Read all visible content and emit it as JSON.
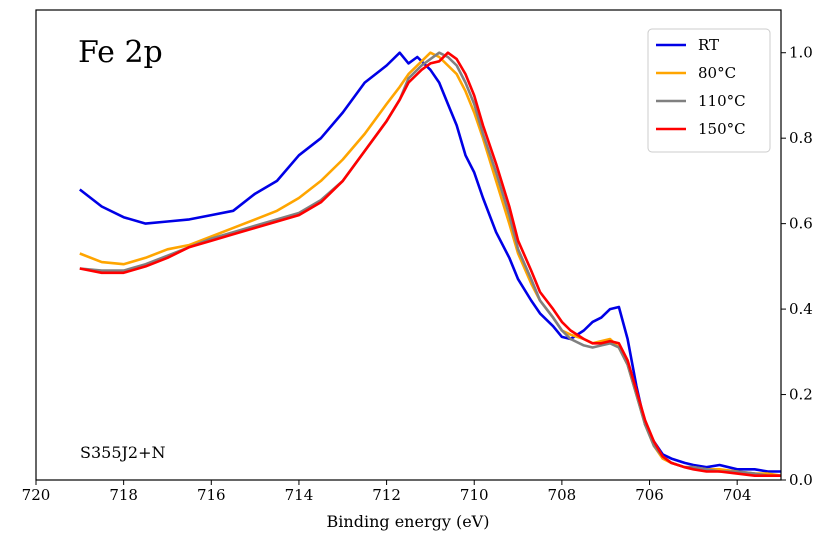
{
  "chart_data": {
    "type": "line",
    "annotation_title": "Fe 2p",
    "annotation_sample": "S355J2+N",
    "xlabel": "Binding energy (eV)",
    "ylabel": "",
    "xlim": [
      720,
      703
    ],
    "ylim": [
      0.0,
      1.1
    ],
    "x_reversed": true,
    "y_axis_side": "right",
    "xticks": [
      720,
      718,
      716,
      714,
      712,
      710,
      708,
      706,
      704
    ],
    "xtick_labels": [
      "720",
      "718",
      "716",
      "714",
      "712",
      "710",
      "708",
      "706",
      "704"
    ],
    "yticks": [
      0.0,
      0.2,
      0.4,
      0.6,
      0.8,
      1.0
    ],
    "ytick_labels": [
      "0.0",
      "0.2",
      "0.4",
      "0.6",
      "0.8",
      "1.0"
    ],
    "grid": false,
    "legend_position": "top-right",
    "series": [
      {
        "name": "RT",
        "color": "#0000e6",
        "x": [
          719.0,
          718.5,
          718.0,
          717.5,
          717.0,
          716.5,
          716.0,
          715.5,
          715.0,
          714.5,
          714.0,
          713.5,
          713.0,
          712.5,
          712.0,
          711.7,
          711.5,
          711.3,
          711.0,
          710.8,
          710.6,
          710.4,
          710.2,
          710.0,
          709.8,
          709.5,
          709.2,
          709.0,
          708.7,
          708.5,
          708.2,
          708.0,
          707.8,
          707.5,
          707.3,
          707.1,
          706.9,
          706.7,
          706.5,
          706.3,
          706.1,
          705.9,
          705.7,
          705.5,
          705.2,
          705.0,
          704.7,
          704.4,
          704.0,
          703.6,
          703.3,
          703.0
        ],
        "y": [
          0.68,
          0.64,
          0.615,
          0.6,
          0.605,
          0.61,
          0.62,
          0.63,
          0.67,
          0.7,
          0.76,
          0.8,
          0.86,
          0.93,
          0.97,
          1.0,
          0.975,
          0.99,
          0.96,
          0.93,
          0.88,
          0.83,
          0.76,
          0.72,
          0.66,
          0.58,
          0.52,
          0.47,
          0.42,
          0.39,
          0.36,
          0.335,
          0.33,
          0.35,
          0.37,
          0.38,
          0.4,
          0.405,
          0.33,
          0.22,
          0.13,
          0.09,
          0.06,
          0.05,
          0.04,
          0.035,
          0.03,
          0.035,
          0.025,
          0.025,
          0.02,
          0.02
        ]
      },
      {
        "name": "80°C",
        "color": "#ffa500",
        "x": [
          719.0,
          718.5,
          718.0,
          717.5,
          717.0,
          716.5,
          716.0,
          715.5,
          715.0,
          714.5,
          714.0,
          713.5,
          713.0,
          712.5,
          712.0,
          711.7,
          711.5,
          711.2,
          711.0,
          710.8,
          710.6,
          710.4,
          710.2,
          710.0,
          709.8,
          709.5,
          709.2,
          709.0,
          708.7,
          708.5,
          708.2,
          708.0,
          707.8,
          707.5,
          707.3,
          707.1,
          706.9,
          706.7,
          706.5,
          706.3,
          706.1,
          705.9,
          705.7,
          705.5,
          705.2,
          705.0,
          704.7,
          704.4,
          704.0,
          703.6,
          703.3,
          703.0
        ],
        "y": [
          0.53,
          0.51,
          0.505,
          0.52,
          0.54,
          0.55,
          0.57,
          0.59,
          0.61,
          0.63,
          0.66,
          0.7,
          0.75,
          0.81,
          0.88,
          0.92,
          0.95,
          0.98,
          1.0,
          0.99,
          0.97,
          0.95,
          0.91,
          0.86,
          0.8,
          0.7,
          0.6,
          0.53,
          0.46,
          0.42,
          0.38,
          0.35,
          0.34,
          0.33,
          0.32,
          0.325,
          0.33,
          0.31,
          0.27,
          0.2,
          0.13,
          0.08,
          0.05,
          0.04,
          0.03,
          0.03,
          0.025,
          0.025,
          0.02,
          0.015,
          0.015,
          0.01
        ]
      },
      {
        "name": "110°C",
        "color": "#808080",
        "x": [
          719.0,
          718.5,
          718.0,
          717.5,
          717.0,
          716.5,
          716.0,
          715.5,
          715.0,
          714.5,
          714.0,
          713.5,
          713.0,
          712.5,
          712.0,
          711.7,
          711.5,
          711.2,
          711.0,
          710.8,
          710.6,
          710.4,
          710.2,
          710.0,
          709.8,
          709.5,
          709.2,
          709.0,
          708.7,
          708.5,
          708.2,
          708.0,
          707.8,
          707.5,
          707.3,
          707.1,
          706.9,
          706.7,
          706.5,
          706.3,
          706.1,
          705.9,
          705.7,
          705.5,
          705.2,
          705.0,
          704.7,
          704.4,
          704.0,
          703.6,
          703.3,
          703.0
        ],
        "y": [
          0.495,
          0.49,
          0.49,
          0.505,
          0.525,
          0.545,
          0.565,
          0.58,
          0.595,
          0.61,
          0.625,
          0.655,
          0.7,
          0.77,
          0.84,
          0.89,
          0.94,
          0.97,
          0.985,
          1.0,
          0.99,
          0.97,
          0.93,
          0.88,
          0.81,
          0.72,
          0.62,
          0.54,
          0.47,
          0.42,
          0.38,
          0.35,
          0.33,
          0.315,
          0.31,
          0.315,
          0.32,
          0.31,
          0.27,
          0.2,
          0.13,
          0.08,
          0.055,
          0.04,
          0.03,
          0.03,
          0.025,
          0.02,
          0.02,
          0.015,
          0.01,
          0.01
        ]
      },
      {
        "name": "150°C",
        "color": "#ff0000",
        "x": [
          719.0,
          718.5,
          718.0,
          717.5,
          717.0,
          716.5,
          716.0,
          715.5,
          715.0,
          714.5,
          714.0,
          713.5,
          713.0,
          712.5,
          712.0,
          711.7,
          711.5,
          711.2,
          711.0,
          710.8,
          710.6,
          710.4,
          710.2,
          710.0,
          709.8,
          709.5,
          709.2,
          709.0,
          708.7,
          708.5,
          708.2,
          708.0,
          707.8,
          707.5,
          707.3,
          707.1,
          706.9,
          706.7,
          706.5,
          706.3,
          706.1,
          705.9,
          705.7,
          705.5,
          705.2,
          705.0,
          704.7,
          704.4,
          704.0,
          703.6,
          703.3,
          703.0
        ],
        "y": [
          0.495,
          0.485,
          0.485,
          0.5,
          0.52,
          0.545,
          0.56,
          0.575,
          0.59,
          0.605,
          0.62,
          0.65,
          0.7,
          0.77,
          0.84,
          0.89,
          0.93,
          0.96,
          0.975,
          0.98,
          1.0,
          0.985,
          0.95,
          0.9,
          0.83,
          0.74,
          0.64,
          0.56,
          0.49,
          0.44,
          0.4,
          0.37,
          0.35,
          0.33,
          0.32,
          0.32,
          0.325,
          0.32,
          0.28,
          0.21,
          0.14,
          0.09,
          0.055,
          0.04,
          0.03,
          0.025,
          0.02,
          0.02,
          0.015,
          0.01,
          0.01,
          0.01
        ]
      }
    ]
  }
}
